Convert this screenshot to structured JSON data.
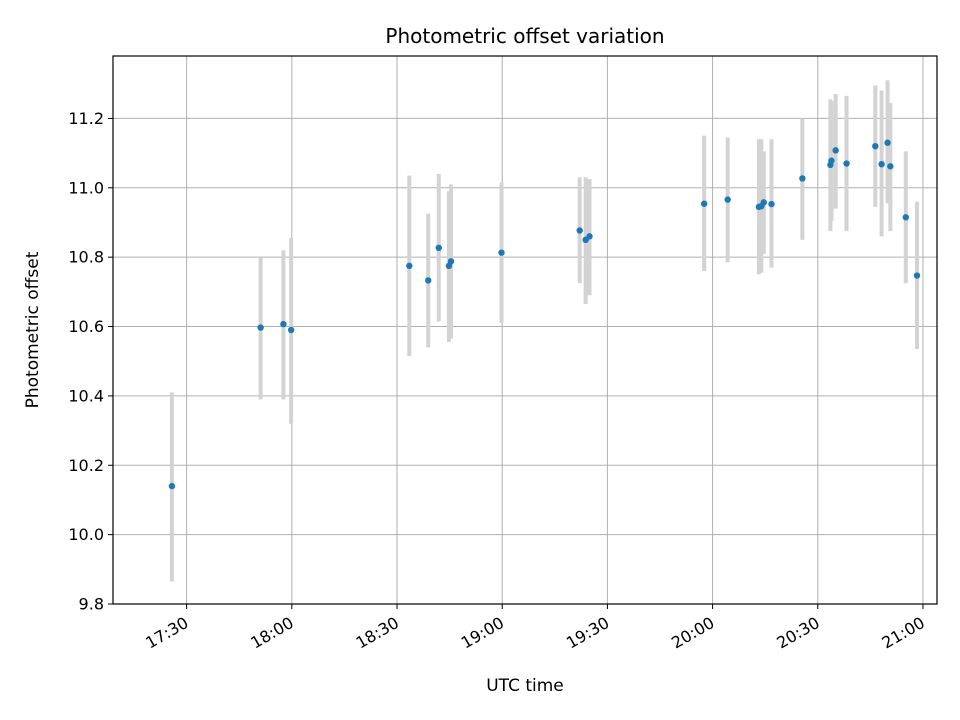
{
  "chart_data": {
    "type": "scatter",
    "title": "Photometric offset variation",
    "xlabel": "UTC time",
    "ylabel": "Photometric offset",
    "xlim_minutes": [
      1029,
      1264
    ],
    "ylim": [
      9.8,
      11.38
    ],
    "grid": true,
    "x_ticks": [
      {
        "minutes": 1050,
        "label": "17:30"
      },
      {
        "minutes": 1080,
        "label": "18:00"
      },
      {
        "minutes": 1110,
        "label": "18:30"
      },
      {
        "minutes": 1140,
        "label": "19:00"
      },
      {
        "minutes": 1170,
        "label": "19:30"
      },
      {
        "minutes": 1200,
        "label": "20:00"
      },
      {
        "minutes": 1230,
        "label": "20:30"
      },
      {
        "minutes": 1260,
        "label": "21:00"
      }
    ],
    "y_ticks": [
      {
        "value": 9.8,
        "label": "9.8"
      },
      {
        "value": 10.0,
        "label": "10.0"
      },
      {
        "value": 10.2,
        "label": "10.2"
      },
      {
        "value": 10.4,
        "label": "10.4"
      },
      {
        "value": 10.6,
        "label": "10.6"
      },
      {
        "value": 10.8,
        "label": "10.8"
      },
      {
        "value": 11.0,
        "label": "11.0"
      },
      {
        "value": 11.2,
        "label": "11.2"
      }
    ],
    "colors": {
      "point": "#1f77b4",
      "errorbar": "#d3d3d3",
      "grid": "#b0b0b0",
      "axes": "#000000"
    },
    "points": [
      {
        "t": 1045.8,
        "y": 10.14,
        "lo": 9.865,
        "hi": 10.41
      },
      {
        "t": 1071.1,
        "y": 10.597,
        "lo": 10.39,
        "hi": 10.8
      },
      {
        "t": 1077.6,
        "y": 10.607,
        "lo": 10.39,
        "hi": 10.82
      },
      {
        "t": 1079.8,
        "y": 10.59,
        "lo": 10.32,
        "hi": 10.855
      },
      {
        "t": 1113.5,
        "y": 10.775,
        "lo": 10.515,
        "hi": 11.035
      },
      {
        "t": 1118.9,
        "y": 10.733,
        "lo": 10.54,
        "hi": 10.925
      },
      {
        "t": 1121.9,
        "y": 10.827,
        "lo": 10.615,
        "hi": 11.04
      },
      {
        "t": 1124.8,
        "y": 10.775,
        "lo": 10.555,
        "hi": 10.99
      },
      {
        "t": 1125.4,
        "y": 10.788,
        "lo": 10.565,
        "hi": 11.01
      },
      {
        "t": 1139.8,
        "y": 10.813,
        "lo": 10.61,
        "hi": 11.015
      },
      {
        "t": 1162.1,
        "y": 10.877,
        "lo": 10.725,
        "hi": 11.03
      },
      {
        "t": 1163.8,
        "y": 10.85,
        "lo": 10.665,
        "hi": 11.03
      },
      {
        "t": 1164.9,
        "y": 10.86,
        "lo": 10.69,
        "hi": 11.025
      },
      {
        "t": 1197.6,
        "y": 10.954,
        "lo": 10.76,
        "hi": 11.15
      },
      {
        "t": 1204.3,
        "y": 10.966,
        "lo": 10.785,
        "hi": 11.145
      },
      {
        "t": 1213.2,
        "y": 10.945,
        "lo": 10.75,
        "hi": 11.14
      },
      {
        "t": 1213.9,
        "y": 10.947,
        "lo": 10.755,
        "hi": 11.14
      },
      {
        "t": 1214.6,
        "y": 10.958,
        "lo": 10.81,
        "hi": 11.105
      },
      {
        "t": 1216.8,
        "y": 10.953,
        "lo": 10.77,
        "hi": 11.14
      },
      {
        "t": 1225.6,
        "y": 11.027,
        "lo": 10.85,
        "hi": 11.2
      },
      {
        "t": 1233.6,
        "y": 11.066,
        "lo": 10.875,
        "hi": 11.255
      },
      {
        "t": 1233.9,
        "y": 11.078,
        "lo": 10.905,
        "hi": 11.25
      },
      {
        "t": 1235.1,
        "y": 11.108,
        "lo": 10.94,
        "hi": 11.27
      },
      {
        "t": 1238.2,
        "y": 11.07,
        "lo": 10.875,
        "hi": 11.265
      },
      {
        "t": 1246.4,
        "y": 11.12,
        "lo": 10.945,
        "hi": 11.295
      },
      {
        "t": 1248.2,
        "y": 11.068,
        "lo": 10.86,
        "hi": 11.28
      },
      {
        "t": 1249.9,
        "y": 11.13,
        "lo": 10.955,
        "hi": 11.31
      },
      {
        "t": 1250.7,
        "y": 11.062,
        "lo": 10.875,
        "hi": 11.245
      },
      {
        "t": 1255.1,
        "y": 10.915,
        "lo": 10.725,
        "hi": 11.105
      },
      {
        "t": 1258.3,
        "y": 10.747,
        "lo": 10.535,
        "hi": 10.96
      }
    ]
  }
}
